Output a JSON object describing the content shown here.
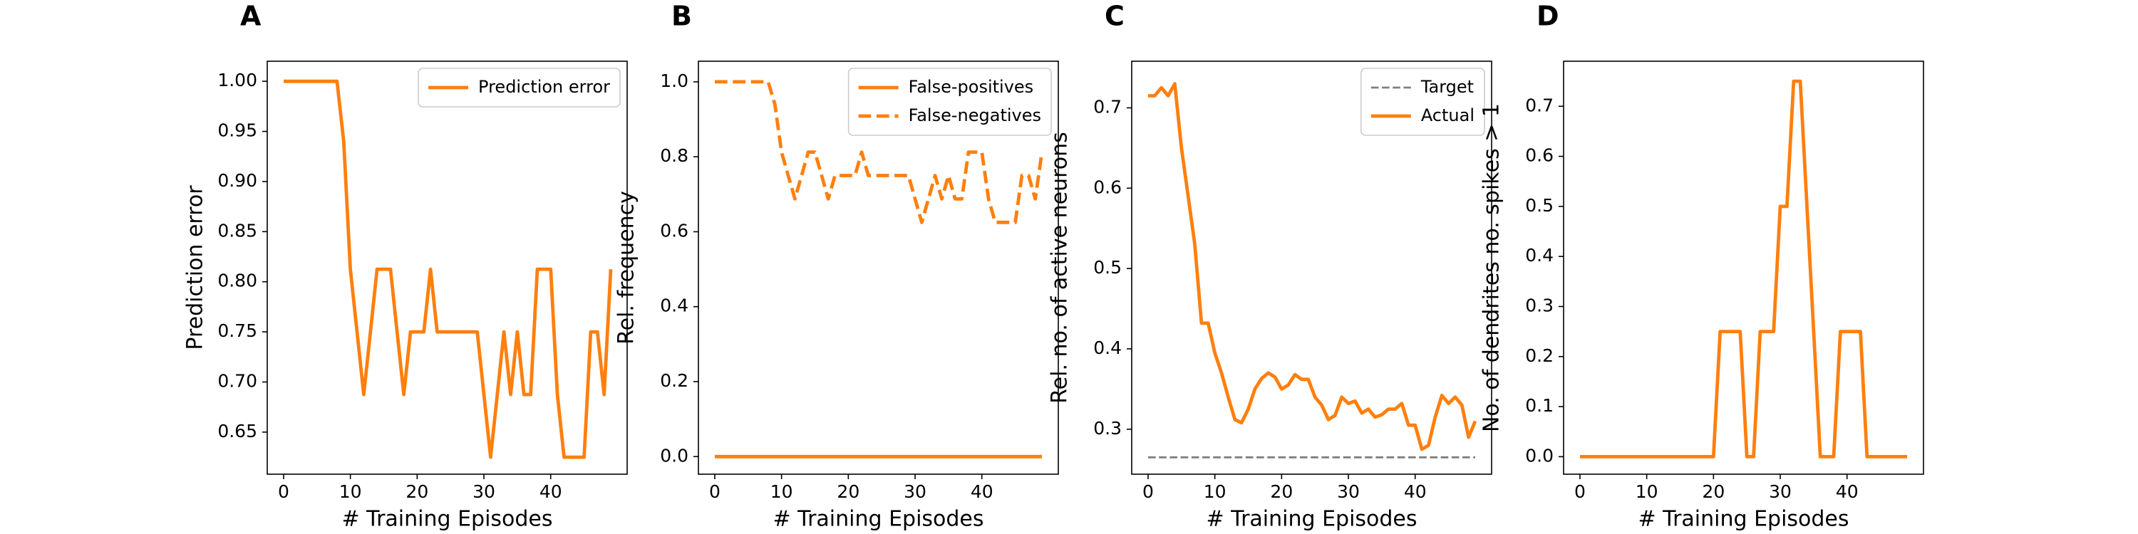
{
  "chart_data": [
    {
      "type": "line",
      "panel_label": "A",
      "xlabel": "# Training Episodes",
      "ylabel": "Prediction error",
      "xlim": [
        -2.45,
        51.45
      ],
      "xticks": [
        0,
        10,
        20,
        30,
        40
      ],
      "ylim": [
        0.608,
        1.02
      ],
      "yticks": [
        {
          "value": 0.65,
          "label": "0.65"
        },
        {
          "value": 0.7,
          "label": "0.70"
        },
        0.75,
        {
          "value": 0.8,
          "label": "0.80"
        },
        0.85,
        {
          "value": 0.9,
          "label": "0.90"
        },
        0.95,
        {
          "value": 1.0,
          "label": "1.00"
        }
      ],
      "legend": "upper right",
      "x": [
        0,
        1,
        2,
        3,
        4,
        5,
        6,
        7,
        8,
        9,
        10,
        11,
        12,
        13,
        14,
        15,
        16,
        17,
        18,
        19,
        20,
        21,
        22,
        23,
        24,
        25,
        26,
        27,
        28,
        29,
        30,
        31,
        32,
        33,
        34,
        35,
        36,
        37,
        38,
        39,
        40,
        41,
        42,
        43,
        44,
        45,
        46,
        47,
        48,
        49
      ],
      "series": [
        {
          "name": "Prediction error",
          "color": "#ff7f0e",
          "linestyle": "solid",
          "linewidth": 2.5,
          "values": [
            1,
            1,
            1,
            1,
            1,
            1,
            1,
            1,
            1,
            0.94,
            0.8125,
            0.75,
            0.6875,
            0.75,
            0.8125,
            0.8125,
            0.8125,
            0.75,
            0.6875,
            0.75,
            0.75,
            0.75,
            0.8125,
            0.75,
            0.75,
            0.75,
            0.75,
            0.75,
            0.75,
            0.75,
            0.6875,
            0.625,
            0.6875,
            0.75,
            0.6875,
            0.75,
            0.6875,
            0.6875,
            0.8125,
            0.8125,
            0.8125,
            0.6875,
            0.625,
            0.625,
            0.625,
            0.625,
            0.75,
            0.75,
            0.6875,
            0.8125
          ]
        }
      ]
    },
    {
      "type": "line",
      "panel_label": "B",
      "xlabel": "# Training Episodes",
      "ylabel": "Rel. frequency",
      "xlim": [
        -2.45,
        51.45
      ],
      "xticks": [
        0,
        10,
        20,
        30,
        40
      ],
      "ylim": [
        -0.047,
        1.055
      ],
      "yticks": [
        {
          "value": 0,
          "label": "0.0"
        },
        0.2,
        0.4,
        0.6,
        0.8,
        {
          "value": 1,
          "label": "1.0"
        }
      ],
      "legend": "upper right",
      "x": [
        0,
        1,
        2,
        3,
        4,
        5,
        6,
        7,
        8,
        9,
        10,
        11,
        12,
        13,
        14,
        15,
        16,
        17,
        18,
        19,
        20,
        21,
        22,
        23,
        24,
        25,
        26,
        27,
        28,
        29,
        30,
        31,
        32,
        33,
        34,
        35,
        36,
        37,
        38,
        39,
        40,
        41,
        42,
        43,
        44,
        45,
        46,
        47,
        48,
        49
      ],
      "series": [
        {
          "name": "False-positives",
          "color": "#ff7f0e",
          "linestyle": "solid",
          "linewidth": 2.5,
          "values": [
            0,
            0,
            0,
            0,
            0,
            0,
            0,
            0,
            0,
            0,
            0,
            0,
            0,
            0,
            0,
            0,
            0,
            0,
            0,
            0,
            0,
            0,
            0,
            0,
            0,
            0,
            0,
            0,
            0,
            0,
            0,
            0,
            0,
            0,
            0,
            0,
            0,
            0,
            0,
            0,
            0,
            0,
            0,
            0,
            0,
            0,
            0,
            0,
            0,
            0
          ]
        },
        {
          "name": "False-negatives",
          "color": "#ff7f0e",
          "linestyle": "dashed",
          "linewidth": 2.5,
          "values": [
            1,
            1,
            1,
            1,
            1,
            1,
            1,
            1,
            1,
            0.94,
            0.8125,
            0.75,
            0.6875,
            0.75,
            0.8125,
            0.8125,
            0.75,
            0.6875,
            0.75,
            0.75,
            0.75,
            0.75,
            0.8125,
            0.75,
            0.75,
            0.75,
            0.75,
            0.75,
            0.75,
            0.75,
            0.6875,
            0.625,
            0.6875,
            0.75,
            0.6875,
            0.75,
            0.6875,
            0.6875,
            0.8125,
            0.8125,
            0.8125,
            0.6875,
            0.625,
            0.625,
            0.625,
            0.625,
            0.75,
            0.75,
            0.6875,
            0.8125
          ]
        }
      ]
    },
    {
      "type": "line",
      "panel_label": "C",
      "xlabel": "# Training Episodes",
      "ylabel": "Rel. no. of active neurons",
      "xlim": [
        -2.45,
        51.45
      ],
      "xticks": [
        0,
        10,
        20,
        30,
        40
      ],
      "ylim": [
        0.244,
        0.758
      ],
      "yticks": [
        0.3,
        0.4,
        0.5,
        0.6,
        0.7
      ],
      "legend": "upper right",
      "x": [
        0,
        1,
        2,
        3,
        4,
        5,
        6,
        7,
        8,
        9,
        10,
        11,
        12,
        13,
        14,
        15,
        16,
        17,
        18,
        19,
        20,
        21,
        22,
        23,
        24,
        25,
        26,
        27,
        28,
        29,
        30,
        31,
        32,
        33,
        34,
        35,
        36,
        37,
        38,
        39,
        40,
        41,
        42,
        43,
        44,
        45,
        46,
        47,
        48,
        49
      ],
      "series": [
        {
          "name": "Target",
          "color": "#7f7f7f",
          "linestyle": "dashed",
          "linewidth": 1.5,
          "values": [
            0.265,
            0.265,
            0.265,
            0.265,
            0.265,
            0.265,
            0.265,
            0.265,
            0.265,
            0.265,
            0.265,
            0.265,
            0.265,
            0.265,
            0.265,
            0.265,
            0.265,
            0.265,
            0.265,
            0.265,
            0.265,
            0.265,
            0.265,
            0.265,
            0.265,
            0.265,
            0.265,
            0.265,
            0.265,
            0.265,
            0.265,
            0.265,
            0.265,
            0.265,
            0.265,
            0.265,
            0.265,
            0.265,
            0.265,
            0.265,
            0.265,
            0.265,
            0.265,
            0.265,
            0.265,
            0.265,
            0.265,
            0.265,
            0.265,
            0.265
          ]
        },
        {
          "name": "Actual",
          "color": "#ff7f0e",
          "linestyle": "solid",
          "linewidth": 2.5,
          "values": [
            0.715,
            0.715,
            0.725,
            0.715,
            0.73,
            0.65,
            0.59,
            0.53,
            0.432,
            0.432,
            0.395,
            0.37,
            0.34,
            0.312,
            0.308,
            0.325,
            0.35,
            0.363,
            0.37,
            0.365,
            0.35,
            0.355,
            0.368,
            0.362,
            0.362,
            0.34,
            0.33,
            0.312,
            0.317,
            0.34,
            0.332,
            0.335,
            0.32,
            0.325,
            0.315,
            0.318,
            0.325,
            0.325,
            0.332,
            0.305,
            0.305,
            0.275,
            0.28,
            0.315,
            0.342,
            0.332,
            0.34,
            0.33,
            0.29,
            0.31
          ]
        }
      ]
    },
    {
      "type": "line",
      "panel_label": "D",
      "xlabel": "# Training Episodes",
      "ylabel": "No. of dendrites no. spikes > 1",
      "xlim": [
        -2.45,
        51.45
      ],
      "xticks": [
        0,
        10,
        20,
        30,
        40
      ],
      "ylim": [
        -0.035,
        0.79
      ],
      "yticks": [
        {
          "value": 0,
          "label": "0.0"
        },
        0.1,
        0.2,
        0.3,
        0.4,
        0.5,
        0.6,
        0.7
      ],
      "x": [
        0,
        1,
        2,
        3,
        4,
        5,
        6,
        7,
        8,
        9,
        10,
        11,
        12,
        13,
        14,
        15,
        16,
        17,
        18,
        19,
        20,
        21,
        22,
        23,
        24,
        25,
        26,
        27,
        28,
        29,
        30,
        31,
        32,
        33,
        34,
        35,
        36,
        37,
        38,
        39,
        40,
        41,
        42,
        43,
        44,
        45,
        46,
        47,
        48,
        49
      ],
      "series": [
        {
          "color": "#ff7f0e",
          "linestyle": "solid",
          "linewidth": 2.5,
          "values": [
            0,
            0,
            0,
            0,
            0,
            0,
            0,
            0,
            0,
            0,
            0,
            0,
            0,
            0,
            0,
            0,
            0,
            0,
            0,
            0,
            0,
            0.25,
            0.25,
            0.25,
            0.25,
            0,
            0,
            0.25,
            0.25,
            0.25,
            0.5,
            0.5,
            0.75,
            0.75,
            0.5,
            0.25,
            0,
            0,
            0,
            0.25,
            0.25,
            0.25,
            0.25,
            0,
            0,
            0,
            0,
            0,
            0,
            0
          ]
        }
      ]
    }
  ]
}
